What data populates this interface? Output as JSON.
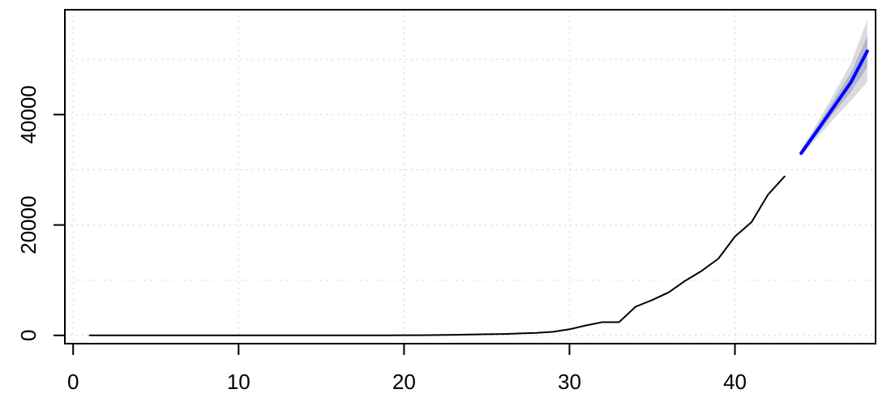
{
  "chart_data": {
    "type": "line",
    "title": "",
    "xlabel": "",
    "ylabel": "",
    "grid": true,
    "xlim": [
      -0.5,
      48.5
    ],
    "ylim": [
      -1500,
      59000
    ],
    "x_ticks": [
      0,
      10,
      20,
      30,
      40
    ],
    "y_ticks": [
      0,
      20000,
      40000
    ],
    "x_tick_labels": [
      "0",
      "10",
      "20",
      "30",
      "40"
    ],
    "y_tick_labels": [
      "0",
      "20000",
      "40000"
    ],
    "grid_x": [
      0,
      10,
      20,
      30,
      40
    ],
    "grid_y": [
      0,
      10000,
      20000,
      30000,
      40000,
      50000
    ],
    "series": [
      {
        "type": "line",
        "color": "#000000",
        "x": [
          1,
          2,
          3,
          4,
          5,
          6,
          7,
          8,
          9,
          10,
          11,
          12,
          13,
          14,
          15,
          16,
          17,
          18,
          19,
          20,
          21,
          22,
          23,
          24,
          25,
          26,
          27,
          28,
          29,
          30,
          31,
          32,
          33,
          34,
          35,
          36,
          37,
          38,
          39,
          40,
          41,
          42,
          43
        ],
        "values": [
          0,
          0,
          0,
          0,
          0,
          0,
          0,
          0,
          0,
          0,
          0,
          0,
          0,
          0,
          0,
          0,
          0,
          0,
          0,
          20,
          30,
          60,
          100,
          150,
          200,
          250,
          350,
          450,
          650,
          1100,
          1800,
          2400,
          2400,
          5200,
          6400,
          7800,
          9900,
          11700,
          13900,
          17900,
          20500,
          25500,
          28800
        ]
      },
      {
        "type": "forecast",
        "color": "#0000ff",
        "x": [
          44,
          45,
          46,
          47,
          48
        ],
        "values": [
          33000,
          37200,
          41500,
          45800,
          51500
        ],
        "lo80": [
          32700,
          36500,
          40400,
          44100,
          48600
        ],
        "hi80": [
          33400,
          38000,
          42800,
          47500,
          54200
        ],
        "lo95": [
          32400,
          35900,
          39300,
          42500,
          45900
        ],
        "hi95": [
          33700,
          38600,
          43900,
          49200,
          57200
        ]
      }
    ],
    "colors": {
      "history": "#000000",
      "forecast": "#0000ff",
      "band95": "#dbdbdf",
      "band80": "#b1b5ce",
      "grid": "#d3d3d3",
      "axis": "#000000"
    }
  }
}
